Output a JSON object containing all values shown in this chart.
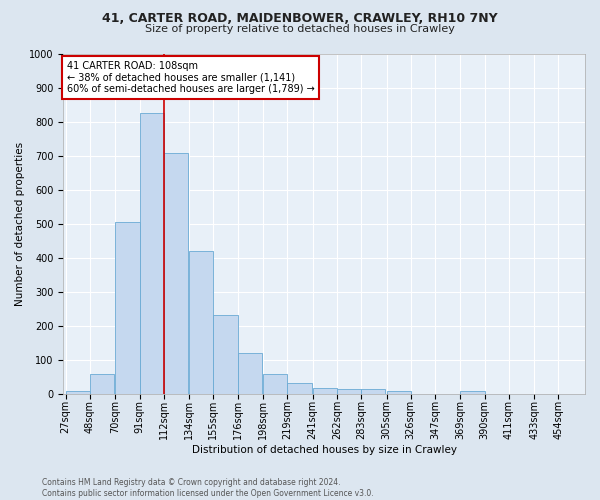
{
  "title_line1": "41, CARTER ROAD, MAIDENBOWER, CRAWLEY, RH10 7NY",
  "title_line2": "Size of property relative to detached houses in Crawley",
  "xlabel": "Distribution of detached houses by size in Crawley",
  "ylabel": "Number of detached properties",
  "footer_line1": "Contains HM Land Registry data © Crown copyright and database right 2024.",
  "footer_line2": "Contains public sector information licensed under the Open Government Licence v3.0.",
  "bin_labels": [
    "27sqm",
    "48sqm",
    "70sqm",
    "91sqm",
    "112sqm",
    "134sqm",
    "155sqm",
    "176sqm",
    "198sqm",
    "219sqm",
    "241sqm",
    "262sqm",
    "283sqm",
    "305sqm",
    "326sqm",
    "347sqm",
    "369sqm",
    "390sqm",
    "411sqm",
    "433sqm",
    "454sqm"
  ],
  "bar_values": [
    8,
    58,
    505,
    825,
    710,
    420,
    233,
    119,
    57,
    32,
    16,
    13,
    13,
    7,
    0,
    0,
    9,
    0,
    0,
    0,
    0
  ],
  "bar_color": "#c5d8ef",
  "bar_edge_color": "#6aaad4",
  "vline_color": "#cc0000",
  "annotation_text": "41 CARTER ROAD: 108sqm\n← 38% of detached houses are smaller (1,141)\n60% of semi-detached houses are larger (1,789) →",
  "annotation_box_facecolor": "white",
  "annotation_box_edgecolor": "#cc0000",
  "ylim": [
    0,
    1000
  ],
  "yticks": [
    0,
    100,
    200,
    300,
    400,
    500,
    600,
    700,
    800,
    900,
    1000
  ],
  "background_color": "#dce6f0",
  "plot_background_color": "#e8f0f8",
  "grid_color": "#ffffff",
  "title1_fontsize": 9,
  "title2_fontsize": 8,
  "ylabel_fontsize": 7.5,
  "xlabel_fontsize": 7.5,
  "tick_fontsize": 7,
  "annotation_fontsize": 7,
  "footer_fontsize": 5.5
}
